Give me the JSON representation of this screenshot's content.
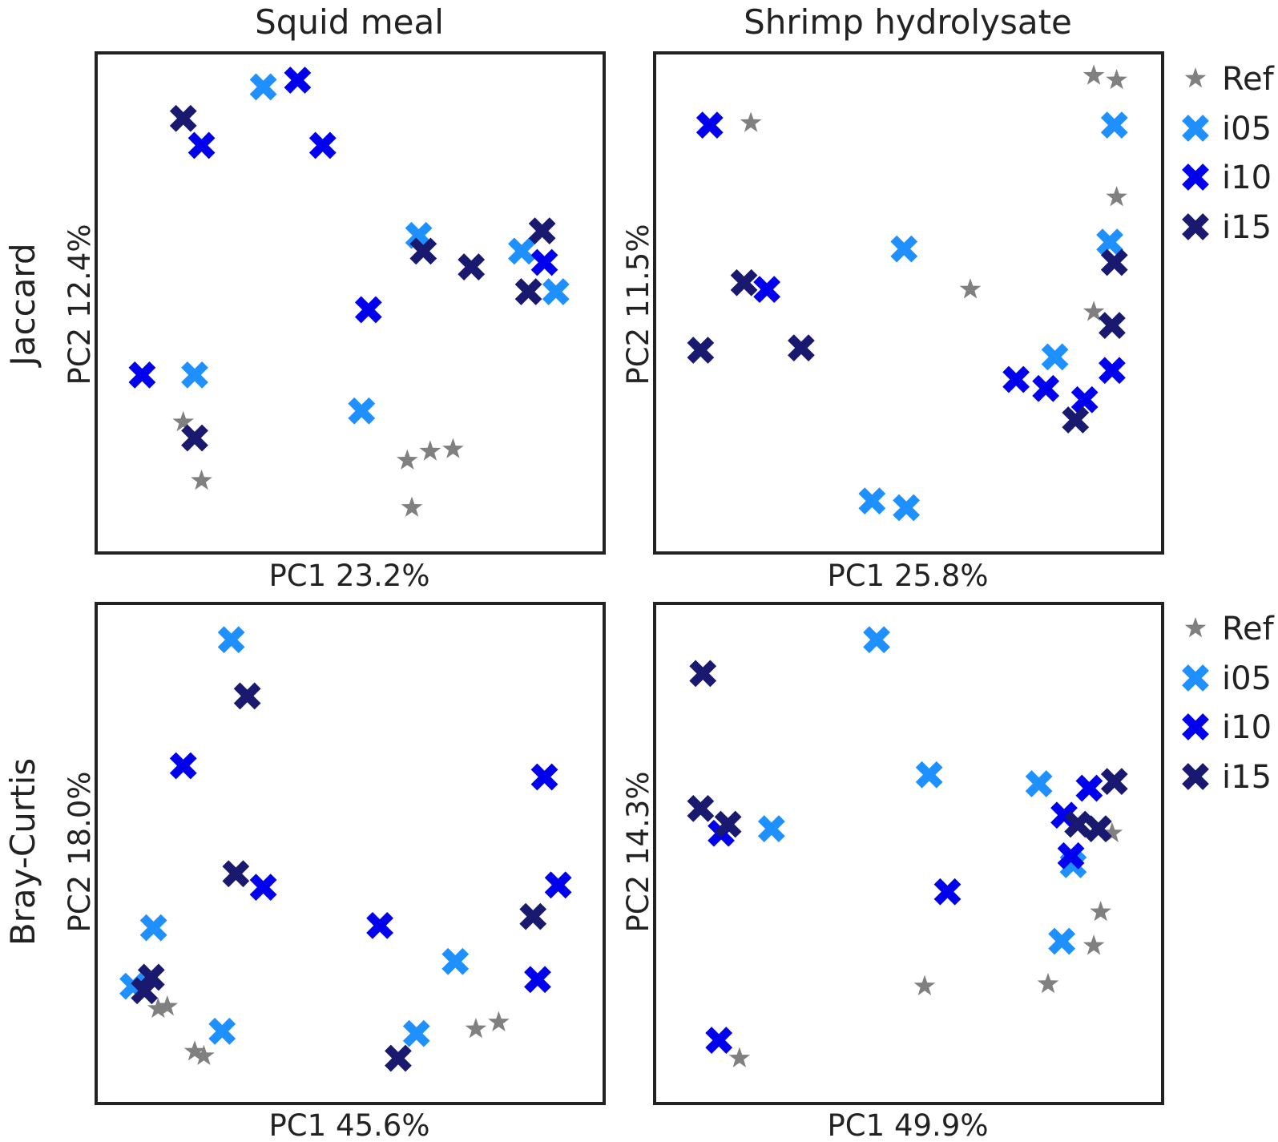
{
  "column_titles": [
    "Squid meal",
    "Shrimp hydrolysate"
  ],
  "row_titles": [
    "Jaccard",
    "Bray-Curtis"
  ],
  "legend": [
    {
      "name": "Ref",
      "marker": "star-icon",
      "color": "#808080"
    },
    {
      "name": "i05",
      "marker": "x-marker-icon",
      "color": "#1e90ff"
    },
    {
      "name": "i10",
      "marker": "x-marker-icon",
      "color": "#0000ee"
    },
    {
      "name": "i15",
      "marker": "x-marker-icon",
      "color": "#191970"
    }
  ],
  "chart_data": [
    {
      "type": "scatter",
      "title": "Squid meal",
      "row": "Jaccard",
      "xlabel": "PC1 23.2%",
      "ylabel": "PC2 12.4%",
      "xlim": [
        0,
        100
      ],
      "ylim": [
        0,
        100
      ],
      "ticks": "none",
      "series": [
        {
          "name": "Ref",
          "points": [
            [
              13.5,
              23.5
            ],
            [
              17.5,
              10.5
            ],
            [
              62.5,
              15
            ],
            [
              67.5,
              17
            ],
            [
              72.5,
              17.5
            ],
            [
              63.5,
              4.5
            ]
          ]
        },
        {
          "name": "i05",
          "points": [
            [
              31,
              98
            ],
            [
              16,
              34
            ],
            [
              52.5,
              26
            ],
            [
              65,
              65
            ],
            [
              87.5,
              61.5
            ],
            [
              95,
              52.5
            ]
          ]
        },
        {
          "name": "i10",
          "points": [
            [
              38.5,
              99.5
            ],
            [
              17.5,
              85
            ],
            [
              44,
              85
            ],
            [
              54,
              48.5
            ],
            [
              4.5,
              34
            ],
            [
              92.5,
              59
            ]
          ]
        },
        {
          "name": "i15",
          "points": [
            [
              13.5,
              91
            ],
            [
              16,
              20
            ],
            [
              66,
              61.5
            ],
            [
              76.5,
              58
            ],
            [
              92,
              66
            ],
            [
              89,
              52.5
            ]
          ]
        }
      ]
    },
    {
      "type": "scatter",
      "title": "Shrimp hydrolysate",
      "row": "Jaccard",
      "xlabel": "PC1 25.8%",
      "ylabel": "PC2 11.5%",
      "xlim": [
        0,
        100
      ],
      "ylim": [
        0,
        100
      ],
      "ticks": "none",
      "series": [
        {
          "name": "Ref",
          "points": [
            [
              15.5,
              90
            ],
            [
              63.5,
              53
            ],
            [
              90.5,
              48
            ],
            [
              90.5,
              100.5
            ],
            [
              95.5,
              99.5
            ],
            [
              95.5,
              73.5
            ]
          ]
        },
        {
          "name": "i05",
          "points": [
            [
              49,
              62
            ],
            [
              49.5,
              4.5
            ],
            [
              42,
              6
            ],
            [
              82,
              38
            ],
            [
              94,
              63.5
            ],
            [
              95,
              89.5
            ]
          ]
        },
        {
          "name": "i10",
          "points": [
            [
              6.5,
              89.5
            ],
            [
              19,
              53
            ],
            [
              73.5,
              33
            ],
            [
              80,
              31
            ],
            [
              88.5,
              28.5
            ],
            [
              94.5,
              35
            ]
          ]
        },
        {
          "name": "i15",
          "points": [
            [
              4.5,
              39.5
            ],
            [
              14,
              54.5
            ],
            [
              26.5,
              40
            ],
            [
              86.5,
              24
            ],
            [
              95,
              59
            ],
            [
              94.5,
              45
            ]
          ]
        }
      ]
    },
    {
      "type": "scatter",
      "title": "Squid meal",
      "row": "Bray-Curtis",
      "xlabel": "PC1 45.6%",
      "ylabel": "PC2 18.0%",
      "xlim": [
        0,
        100
      ],
      "ylim": [
        0,
        100
      ],
      "ticks": "none",
      "series": [
        {
          "name": "Ref",
          "points": [
            [
              8,
              15.5
            ],
            [
              10,
              16
            ],
            [
              16,
              6
            ],
            [
              18,
              5
            ],
            [
              77.5,
              11
            ],
            [
              82.5,
              12.5
            ]
          ]
        },
        {
          "name": "i05",
          "points": [
            [
              24,
              97.5
            ],
            [
              7,
              33.5
            ],
            [
              2.5,
              20.5
            ],
            [
              22,
              10.5
            ],
            [
              73,
              26
            ],
            [
              64.5,
              10
            ]
          ]
        },
        {
          "name": "i10",
          "points": [
            [
              13.5,
              69.5
            ],
            [
              31,
              42.5
            ],
            [
              56.5,
              34
            ],
            [
              92.5,
              67
            ],
            [
              95.5,
              43
            ],
            [
              91,
              22
            ]
          ]
        },
        {
          "name": "i15",
          "points": [
            [
              27.5,
              85
            ],
            [
              25,
              45.5
            ],
            [
              6.5,
              22.5
            ],
            [
              5,
              19.5
            ],
            [
              60.5,
              4.5
            ],
            [
              90,
              36
            ]
          ]
        }
      ]
    },
    {
      "type": "scatter",
      "title": "Shrimp hydrolysate",
      "row": "Bray-Curtis",
      "xlabel": "PC1 49.9%",
      "ylabel": "PC2 14.3%",
      "xlim": [
        0,
        100
      ],
      "ylim": [
        0,
        100
      ],
      "ticks": "none",
      "series": [
        {
          "name": "Ref",
          "points": [
            [
              53.5,
              20.5
            ],
            [
              80.5,
              21
            ],
            [
              90.5,
              29.5
            ],
            [
              92,
              37
            ],
            [
              13,
              4.5
            ],
            [
              94.5,
              54.5
            ]
          ]
        },
        {
          "name": "i05",
          "points": [
            [
              43,
              97.5
            ],
            [
              54.5,
              67.5
            ],
            [
              78.5,
              65.5
            ],
            [
              20,
              55.5
            ],
            [
              86,
              47.5
            ],
            [
              83.5,
              30.5
            ]
          ]
        },
        {
          "name": "i10",
          "points": [
            [
              9,
              54.5
            ],
            [
              58.5,
              41.5
            ],
            [
              84,
              58.5
            ],
            [
              89.5,
              64.5
            ],
            [
              85.5,
              49.5
            ],
            [
              8.5,
              8.5
            ]
          ]
        },
        {
          "name": "i15",
          "points": [
            [
              5,
              90
            ],
            [
              4.5,
              60
            ],
            [
              10.5,
              56.5
            ],
            [
              87,
              56.5
            ],
            [
              91.5,
              55.5
            ],
            [
              95,
              66
            ]
          ]
        }
      ]
    }
  ]
}
